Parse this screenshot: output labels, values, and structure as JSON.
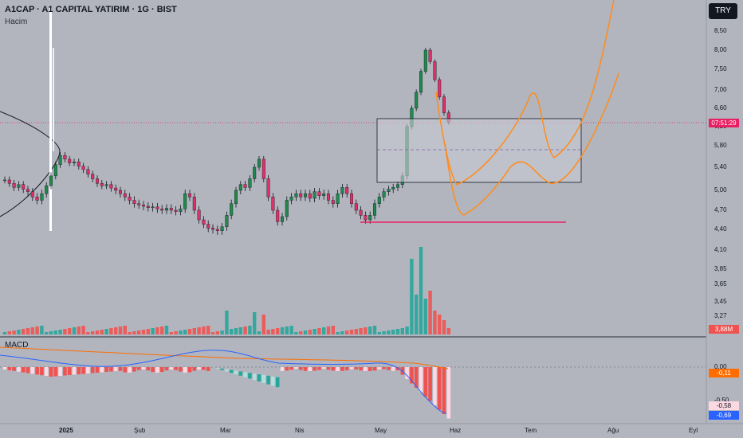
{
  "header": {
    "title": "A1CAP · A1 CAPITAL YATIRIM · 1G · BIST",
    "volume_label": "Hacim",
    "currency_button": "TRY",
    "macd_label": "MACD"
  },
  "price_axis": {
    "ticks": [
      "8,50",
      "8,00",
      "7,50",
      "7,00",
      "6,60",
      "6,20",
      "5,80",
      "5,40",
      "5,00",
      "4,70",
      "4,40",
      "4,10",
      "3,85",
      "3,65",
      "3,45",
      "3,27"
    ]
  },
  "badges": {
    "last_time": "07:51:29",
    "volume": "3,88M",
    "macd_zero": "0,00",
    "macd_hist": "-0,11",
    "macd_m050": "-0,50",
    "macd_signal": "-0,58",
    "macd_line": "-0,69"
  },
  "time_axis": {
    "labels": [
      "2025",
      "Şub",
      "Mar",
      "Nis",
      "May",
      "Haz",
      "Tem",
      "Ağu",
      "Eyl"
    ]
  },
  "colors": {
    "up": "#26a69a",
    "down": "#ef5350",
    "candle_down": "#e0306a",
    "orange": "#ff8c1a",
    "macd_line": "#2962ff",
    "signal_line": "#ff6d00",
    "support": "#e91e63"
  },
  "chart_data": {
    "type": "candlestick",
    "annotations": [
      "rectangle zone",
      "support line",
      "orange drawn projection curves",
      "volume profile curve"
    ],
    "closes": [
      5.18,
      5.12,
      5.05,
      5.1,
      5.02,
      4.98,
      4.9,
      4.85,
      4.95,
      5.08,
      5.25,
      5.45,
      5.62,
      5.55,
      5.48,
      5.5,
      5.42,
      5.36,
      5.28,
      5.2,
      5.12,
      5.08,
      5.1,
      5.04,
      5.0,
      4.95,
      4.9,
      4.85,
      4.8,
      4.78,
      4.76,
      4.74,
      4.75,
      4.72,
      4.7,
      4.73,
      4.7,
      4.68,
      4.72,
      4.95,
      4.9,
      4.7,
      4.55,
      4.48,
      4.42,
      4.4,
      4.38,
      4.44,
      4.62,
      4.8,
      5.0,
      5.1,
      5.05,
      5.2,
      5.4,
      5.55,
      5.2,
      4.9,
      4.7,
      4.52,
      4.6,
      4.85,
      4.9,
      4.95,
      4.9,
      4.95,
      4.88,
      4.98,
      4.92,
      4.95,
      4.85,
      4.8,
      4.95,
      5.05,
      4.95,
      4.8,
      4.7,
      4.62,
      4.55,
      4.62,
      4.8,
      4.9,
      4.98,
      5.02,
      5.05,
      5.1,
      5.25,
      6.2,
      6.6,
      6.95,
      7.45,
      8.0,
      7.7,
      7.25,
      6.85,
      6.5,
      6.3
    ]
  }
}
